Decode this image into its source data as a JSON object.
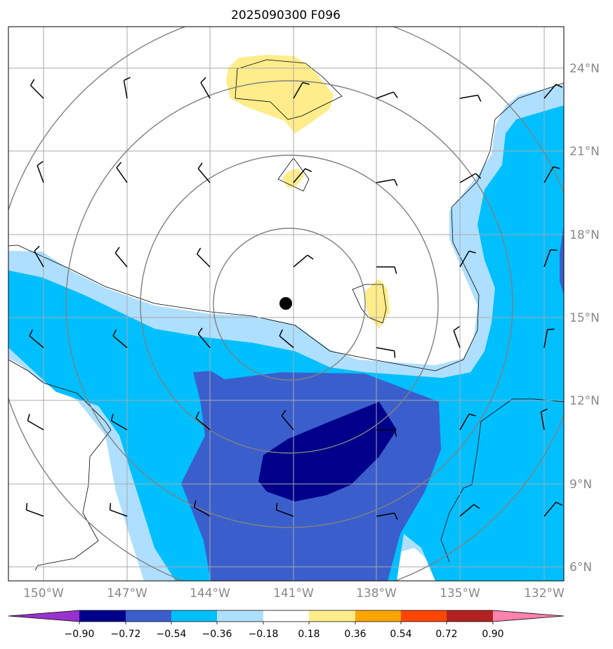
{
  "title": "2025090300 F096",
  "map": {
    "lon_labels": [
      "150°W",
      "147°W",
      "144°W",
      "141°W",
      "138°W",
      "135°W",
      "132°W"
    ],
    "lat_labels": [
      "24°N",
      "21°N",
      "18°N",
      "15°N",
      "12°N",
      "9°N",
      "6°N"
    ],
    "gridline_color": "#aaaaaa",
    "range_ring_color": "#808080",
    "storm_center": {
      "lon": -141.3,
      "lat": 15.5
    }
  },
  "colorbar": {
    "ticks": [
      "−0.90",
      "−0.72",
      "−0.54",
      "−0.36",
      "−0.18",
      "0.18",
      "0.36",
      "0.54",
      "0.72",
      "0.90"
    ],
    "colors": [
      "#9932cc",
      "#00008b",
      "#3a5fcd",
      "#00bfff",
      "#afdfff",
      "#ffffff",
      "#ffec8b",
      "#ffa500",
      "#ff4500",
      "#b22222",
      "#ff82ab"
    ]
  },
  "fill_colors": {
    "light_blue": "#afdfff",
    "blue": "#00bfff",
    "medium_blue": "#3a5fcd",
    "dark_blue": "#00008b",
    "yellow": "#ffec8b"
  }
}
